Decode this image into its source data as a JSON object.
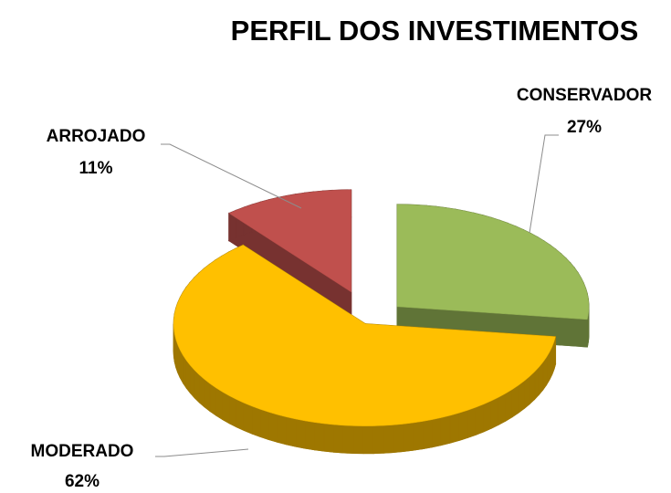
{
  "chart_data": {
    "type": "pie",
    "title": "PERFIL DOS INVESTIMENTOS",
    "categories": [
      "CONSERVADOR",
      "MODERADO",
      "ARROJADO"
    ],
    "values": [
      27,
      62,
      11
    ],
    "value_labels": [
      "27%",
      "62%",
      "11%"
    ],
    "colors": [
      "#9bbb59",
      "#ffc000",
      "#c0504d"
    ]
  }
}
